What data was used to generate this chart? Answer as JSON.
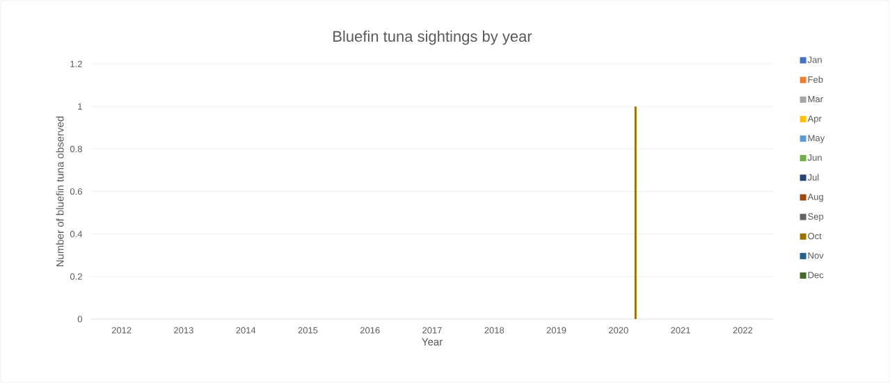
{
  "chart_data": {
    "type": "bar",
    "title": "Bluefin tuna sightings by year",
    "xlabel": "Year",
    "ylabel": "Number of bluefin tuna observed",
    "categories": [
      "2012",
      "2013",
      "2014",
      "2015",
      "2016",
      "2017",
      "2018",
      "2019",
      "2020",
      "2021",
      "2022"
    ],
    "series": [
      {
        "name": "Jan",
        "color": "#4472c4",
        "values": [
          0,
          0,
          0,
          0,
          0,
          0,
          0,
          0,
          0,
          0,
          0
        ]
      },
      {
        "name": "Feb",
        "color": "#ed7d31",
        "values": [
          0,
          0,
          0,
          0,
          0,
          0,
          0,
          0,
          0,
          0,
          0
        ]
      },
      {
        "name": "Mar",
        "color": "#a5a5a5",
        "values": [
          0,
          0,
          0,
          0,
          0,
          0,
          0,
          0,
          0,
          0,
          0
        ]
      },
      {
        "name": "Apr",
        "color": "#ffc000",
        "values": [
          0,
          0,
          0,
          0,
          0,
          0,
          0,
          0,
          0,
          0,
          0
        ]
      },
      {
        "name": "May",
        "color": "#5b9bd5",
        "values": [
          0,
          0,
          0,
          0,
          0,
          0,
          0,
          0,
          0,
          0,
          0
        ]
      },
      {
        "name": "Jun",
        "color": "#70ad47",
        "values": [
          0,
          0,
          0,
          0,
          0,
          0,
          0,
          0,
          0,
          0,
          0
        ]
      },
      {
        "name": "Jul",
        "color": "#264478",
        "values": [
          0,
          0,
          0,
          0,
          0,
          0,
          0,
          0,
          0,
          0,
          0
        ]
      },
      {
        "name": "Aug",
        "color": "#9e480e",
        "values": [
          0,
          0,
          0,
          0,
          0,
          0,
          0,
          0,
          0,
          0,
          0
        ]
      },
      {
        "name": "Sep",
        "color": "#636363",
        "values": [
          0,
          0,
          0,
          0,
          0,
          0,
          0,
          0,
          0,
          0,
          0
        ]
      },
      {
        "name": "Oct",
        "color": "#997300",
        "values": [
          0,
          0,
          0,
          0,
          0,
          0,
          0,
          0,
          1,
          0,
          0
        ]
      },
      {
        "name": "Nov",
        "color": "#255e91",
        "values": [
          0,
          0,
          0,
          0,
          0,
          0,
          0,
          0,
          0,
          0,
          0
        ]
      },
      {
        "name": "Dec",
        "color": "#43682b",
        "values": [
          0,
          0,
          0,
          0,
          0,
          0,
          0,
          0,
          0,
          0,
          0
        ]
      }
    ],
    "ylim": [
      0,
      1.2
    ],
    "yticks": [
      0,
      0.2,
      0.4,
      0.6,
      0.8,
      1,
      1.2
    ],
    "grid": "y",
    "legend": "right"
  }
}
